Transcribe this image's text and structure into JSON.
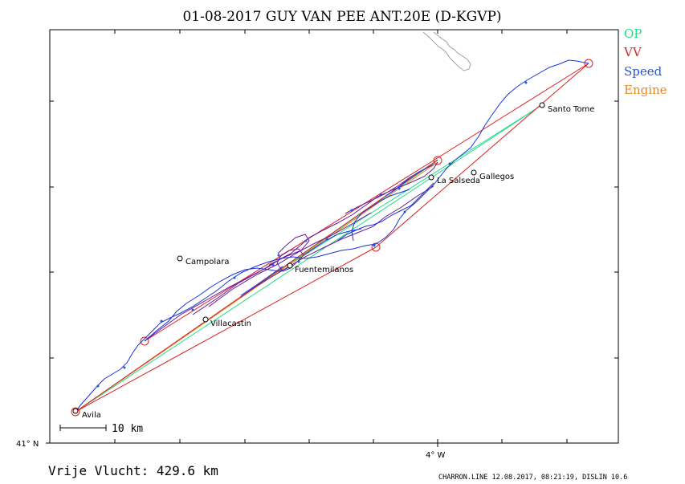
{
  "title": "01-08-2017   GUY VAN PEE   ANT.20E (D-KGVP)",
  "legend": [
    {
      "label": "OP",
      "color": "#22dd88"
    },
    {
      "label": "VV",
      "color": "#dd2222"
    },
    {
      "label": "Speed",
      "color": "#2255dd"
    },
    {
      "label": "Engine",
      "color": "#ee8822"
    }
  ],
  "axis": {
    "lat_label": "41° N",
    "lon_label": "4° W"
  },
  "scale_bar": {
    "label": "10 km"
  },
  "footer": {
    "distance": "Vrije Vlucht:  429.6 km",
    "credit": "CHARRON.LINE 12.08.2017, 08:21:19, DISLIN 10.6"
  },
  "places": [
    {
      "name": "Avila"
    },
    {
      "name": "Villacastin"
    },
    {
      "name": "Campolara"
    },
    {
      "name": "Fuentemilanos"
    },
    {
      "name": "La Salseda"
    },
    {
      "name": "Gallegos"
    },
    {
      "name": "Santo Tome"
    }
  ],
  "colors": {
    "frame": "#000000",
    "track_blue": "#1a33dd",
    "track_purple": "#6a1a9a",
    "op_line": "#22dd88",
    "vv_line": "#dd2222",
    "engine_line": "#ee8822",
    "coast": "#a0a0a0"
  }
}
